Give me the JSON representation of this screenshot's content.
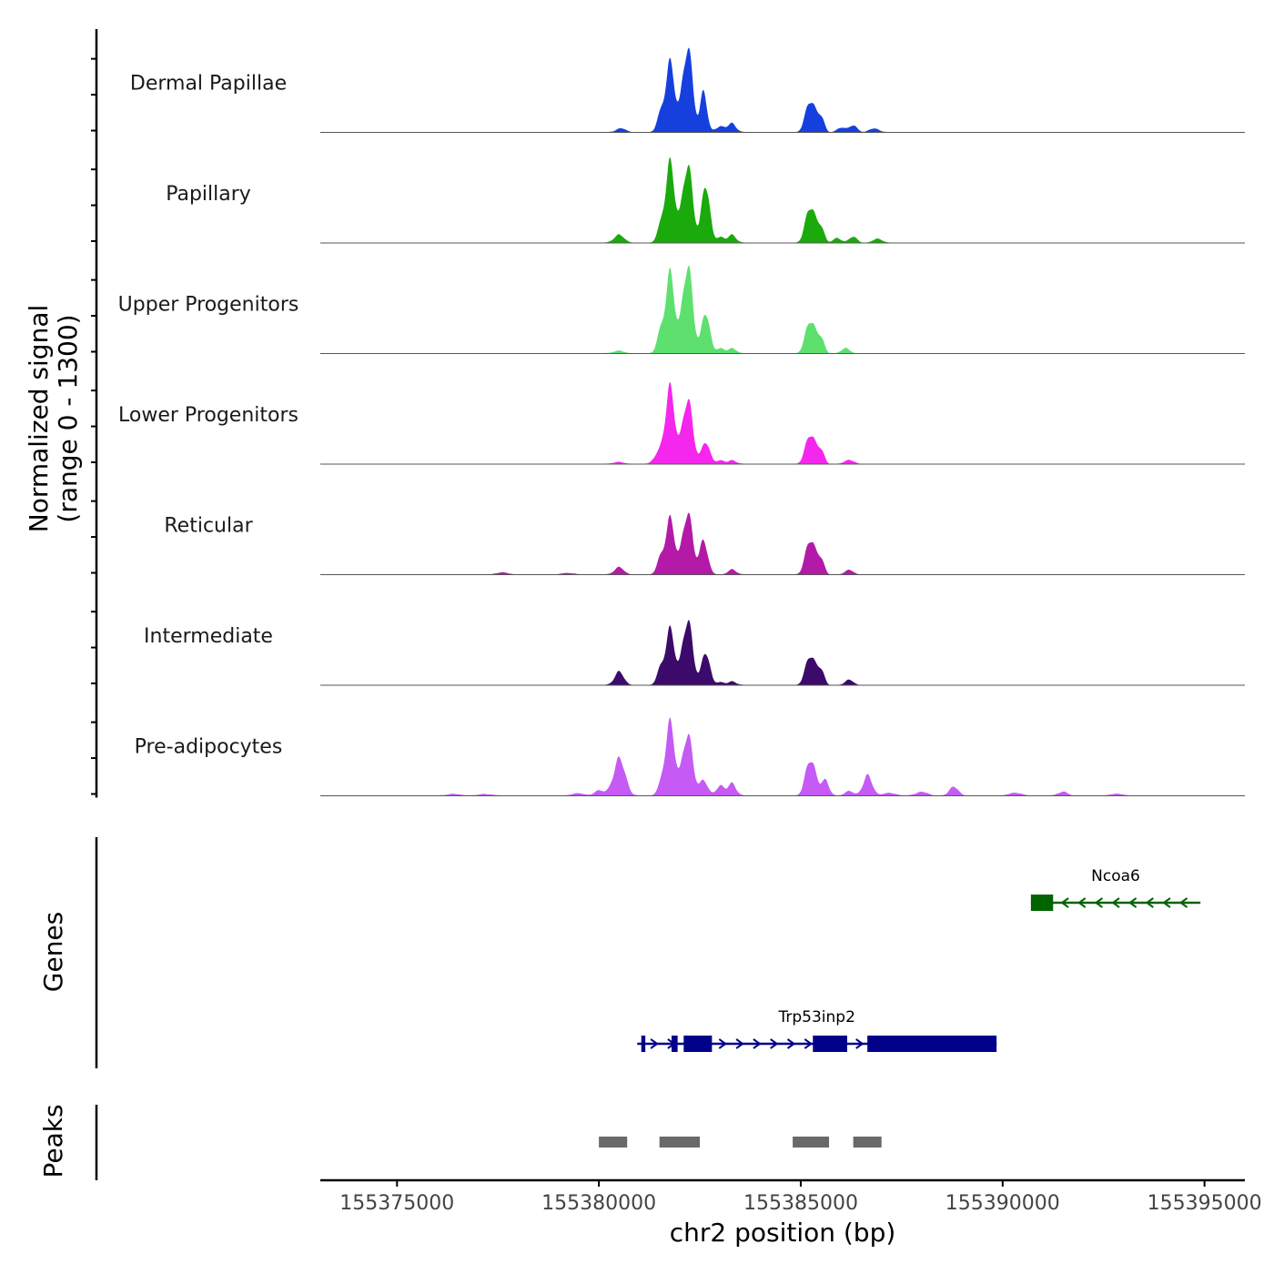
{
  "chart_data": {
    "type": "area",
    "signal_ylabel_line1": "Normalized signal",
    "signal_ylabel_line2": "(range 0 - 1300)",
    "ylim": [
      0,
      1300
    ],
    "xlabel": "chr2 position (bp)",
    "xlim": [
      155373100,
      155396000
    ],
    "xticks": [
      155375000,
      155380000,
      155385000,
      155390000,
      155395000
    ],
    "xtick_labels": [
      "155375000",
      "155380000",
      "155385000",
      "155390000",
      "155395000"
    ],
    "track_extent": [
      155373100,
      155394900
    ],
    "series": [
      {
        "name": "Dermal Papillae",
        "color": "#1540de",
        "peaks": [
          [
            155380550,
            60,
            110
          ],
          [
            155381500,
            170,
            80
          ],
          [
            155381750,
            1000,
            120
          ],
          [
            155382200,
            1300,
            120
          ],
          [
            155382600,
            550,
            80
          ],
          [
            155383000,
            80,
            120
          ],
          [
            155383300,
            120,
            100
          ],
          [
            155385250,
            480,
            120
          ],
          [
            155385500,
            200,
            80
          ],
          [
            155386000,
            70,
            100
          ],
          [
            155386300,
            90,
            100
          ],
          [
            155386800,
            50,
            120
          ]
        ]
      },
      {
        "name": "Papillary",
        "color": "#1aaa0b",
        "peaks": [
          [
            155380500,
            120,
            120
          ],
          [
            155381500,
            140,
            80
          ],
          [
            155381750,
            1150,
            120
          ],
          [
            155382200,
            1200,
            120
          ],
          [
            155382650,
            800,
            100
          ],
          [
            155383000,
            80,
            100
          ],
          [
            155383300,
            110,
            100
          ],
          [
            155385250,
            550,
            120
          ],
          [
            155385500,
            200,
            80
          ],
          [
            155385900,
            70,
            100
          ],
          [
            155386300,
            80,
            100
          ],
          [
            155386900,
            50,
            120
          ]
        ]
      },
      {
        "name": "Upper Progenitors",
        "color": "#5ee06f",
        "peaks": [
          [
            155380500,
            40,
            120
          ],
          [
            155381500,
            200,
            80
          ],
          [
            155381750,
            1150,
            120
          ],
          [
            155382200,
            1350,
            120
          ],
          [
            155382650,
            560,
            100
          ],
          [
            155383000,
            70,
            100
          ],
          [
            155383300,
            70,
            100
          ],
          [
            155385250,
            500,
            120
          ],
          [
            155385500,
            200,
            80
          ],
          [
            155386100,
            70,
            100
          ]
        ]
      },
      {
        "name": "Lower Progenitors",
        "color": "#f526ee",
        "peaks": [
          [
            155380500,
            30,
            120
          ],
          [
            155381450,
            120,
            100
          ],
          [
            155381750,
            1100,
            120
          ],
          [
            155382200,
            1000,
            120
          ],
          [
            155382650,
            300,
            100
          ],
          [
            155383000,
            50,
            100
          ],
          [
            155383300,
            50,
            100
          ],
          [
            155385250,
            450,
            120
          ],
          [
            155385500,
            180,
            80
          ],
          [
            155386200,
            50,
            120
          ]
        ]
      },
      {
        "name": "Reticular",
        "color": "#b31aa8",
        "peaks": [
          [
            155377600,
            25,
            150
          ],
          [
            155379200,
            20,
            150
          ],
          [
            155380500,
            110,
            110
          ],
          [
            155381500,
            160,
            80
          ],
          [
            155381750,
            800,
            120
          ],
          [
            155382200,
            950,
            120
          ],
          [
            155382600,
            450,
            100
          ],
          [
            155383300,
            70,
            100
          ],
          [
            155385250,
            530,
            120
          ],
          [
            155385500,
            200,
            80
          ],
          [
            155386200,
            60,
            100
          ]
        ]
      },
      {
        "name": "Intermediate",
        "color": "#3c0a6a",
        "peaks": [
          [
            155380500,
            200,
            110
          ],
          [
            155381500,
            160,
            80
          ],
          [
            155381750,
            800,
            120
          ],
          [
            155382200,
            1000,
            120
          ],
          [
            155382650,
            450,
            100
          ],
          [
            155383000,
            40,
            100
          ],
          [
            155383300,
            50,
            100
          ],
          [
            155385250,
            450,
            120
          ],
          [
            155385500,
            200,
            80
          ],
          [
            155386200,
            70,
            100
          ]
        ]
      },
      {
        "name": "Pre-adipocytes",
        "color": "#c55af4",
        "peaks": [
          [
            155376400,
            25,
            150
          ],
          [
            155377200,
            25,
            150
          ],
          [
            155379500,
            30,
            150
          ],
          [
            155380000,
            70,
            120
          ],
          [
            155380500,
            550,
            140
          ],
          [
            155381500,
            70,
            80
          ],
          [
            155381750,
            1050,
            120
          ],
          [
            155382200,
            950,
            120
          ],
          [
            155382600,
            200,
            100
          ],
          [
            155383000,
            140,
            100
          ],
          [
            155383300,
            170,
            100
          ],
          [
            155385250,
            550,
            120
          ],
          [
            155385600,
            200,
            100
          ],
          [
            155386200,
            60,
            100
          ],
          [
            155386650,
            300,
            110
          ],
          [
            155387200,
            40,
            150
          ],
          [
            155388000,
            50,
            150
          ],
          [
            155388800,
            120,
            110
          ],
          [
            155390300,
            40,
            150
          ],
          [
            155391500,
            60,
            110
          ],
          [
            155392800,
            25,
            150
          ]
        ]
      }
    ],
    "genes_ylabel": "Genes",
    "genes": [
      {
        "name": "Ncoa6",
        "strand": "-",
        "color": "#006400",
        "start": 155390700,
        "end": 155394900,
        "exons": [
          [
            155390700,
            155391250
          ]
        ]
      },
      {
        "name": "Trp53inp2",
        "strand": "+",
        "color": "#00008b",
        "start": 155380950,
        "end": 155389850,
        "exons": [
          [
            155381050,
            155381150
          ],
          [
            155381800,
            155381950
          ],
          [
            155382100,
            155382800
          ],
          [
            155385300,
            155386150
          ],
          [
            155386650,
            155389850
          ]
        ]
      }
    ],
    "peaks_ylabel": "Peaks",
    "peak_regions": [
      [
        155380000,
        155380700
      ],
      [
        155381500,
        155382500
      ],
      [
        155384800,
        155385700
      ],
      [
        155386300,
        155387000
      ]
    ],
    "peak_color": "#696969"
  }
}
